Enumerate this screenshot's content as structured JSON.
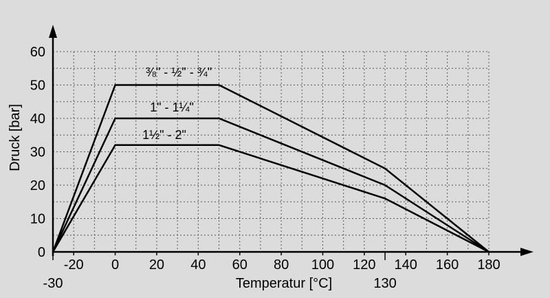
{
  "chart_data": {
    "type": "line",
    "title": "",
    "xlabel": "Temperatur [°C]",
    "ylabel": "Druck [bar]",
    "xlim": [
      -30,
      180
    ],
    "ylim": [
      0,
      60
    ],
    "grid": true,
    "x_ticks": [
      "-20",
      "0",
      "20",
      "40",
      "60",
      "80",
      "100",
      "120",
      "140",
      "160",
      "180"
    ],
    "x_tick_values": [
      -20,
      0,
      20,
      40,
      60,
      80,
      100,
      120,
      140,
      160,
      180
    ],
    "extra_x_labels": [
      {
        "value": -30,
        "label": "-30"
      },
      {
        "value": 130,
        "label": "130"
      }
    ],
    "y_ticks": [
      "0",
      "10",
      "20",
      "30",
      "40",
      "50",
      "60"
    ],
    "y_tick_values": [
      0,
      10,
      20,
      30,
      40,
      50,
      60
    ],
    "series": [
      {
        "name": "⅜\" - ½\" - ¾\"",
        "points": [
          [
            -30,
            0
          ],
          [
            0,
            50
          ],
          [
            50,
            50
          ],
          [
            130,
            25
          ],
          [
            180,
            0
          ]
        ]
      },
      {
        "name": "1\" - 1¼\"",
        "points": [
          [
            -30,
            0
          ],
          [
            0,
            40
          ],
          [
            50,
            40
          ],
          [
            130,
            20
          ],
          [
            180,
            0
          ]
        ]
      },
      {
        "name": "1½\" - 2\"",
        "points": [
          [
            -30,
            0
          ],
          [
            0,
            32
          ],
          [
            50,
            32
          ],
          [
            130,
            16
          ],
          [
            180,
            0
          ]
        ]
      }
    ],
    "colors": {
      "background": "#dcdcdc",
      "line": "#000000",
      "grid": "#555555"
    }
  }
}
